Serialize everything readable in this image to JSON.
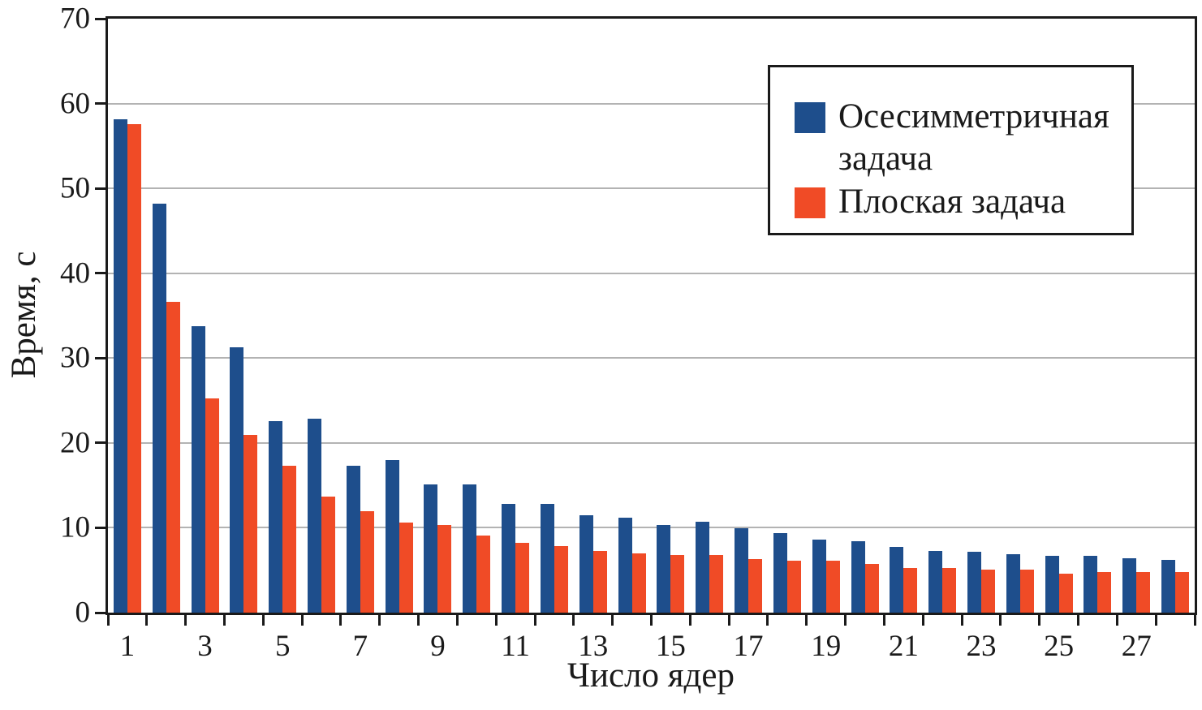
{
  "chart_data": {
    "type": "bar",
    "title": "",
    "xlabel": "Число ядер",
    "ylabel": "Время, с",
    "ylim": [
      0,
      70
    ],
    "yticks": [
      0,
      10,
      20,
      30,
      40,
      50,
      60,
      70
    ],
    "grid": true,
    "legend_position": "top-right",
    "categories": [
      1,
      2,
      3,
      4,
      5,
      6,
      7,
      8,
      9,
      10,
      11,
      12,
      13,
      14,
      15,
      16,
      17,
      18,
      19,
      20,
      21,
      22,
      23,
      24,
      25,
      26,
      27,
      28
    ],
    "xtick_labels": [
      "1",
      "3",
      "5",
      "7",
      "9",
      "11",
      "13",
      "15",
      "17",
      "19",
      "21",
      "23",
      "25",
      "27"
    ],
    "series": [
      {
        "name": "Осесимметричная задача",
        "color": "#1e4e8c",
        "values": [
          58.1,
          48.2,
          33.8,
          31.3,
          22.6,
          22.9,
          17.3,
          18.0,
          15.1,
          15.1,
          12.8,
          12.8,
          11.5,
          11.2,
          10.3,
          10.7,
          9.9,
          9.4,
          8.6,
          8.4,
          7.7,
          7.3,
          7.2,
          6.9,
          6.7,
          6.7,
          6.4,
          6.2
        ]
      },
      {
        "name": "Плоская задача",
        "color": "#f04b26",
        "values": [
          57.6,
          36.6,
          25.2,
          20.9,
          17.3,
          13.7,
          12.0,
          10.6,
          10.3,
          9.1,
          8.2,
          7.8,
          7.3,
          7.0,
          6.8,
          6.8,
          6.3,
          6.1,
          6.1,
          5.7,
          5.3,
          5.3,
          5.1,
          5.1,
          4.6,
          4.8,
          4.8,
          4.8
        ]
      }
    ],
    "colors": {
      "grid": "#b3b3b3",
      "axis": "#1a1a1a",
      "background": "#ffffff"
    }
  }
}
